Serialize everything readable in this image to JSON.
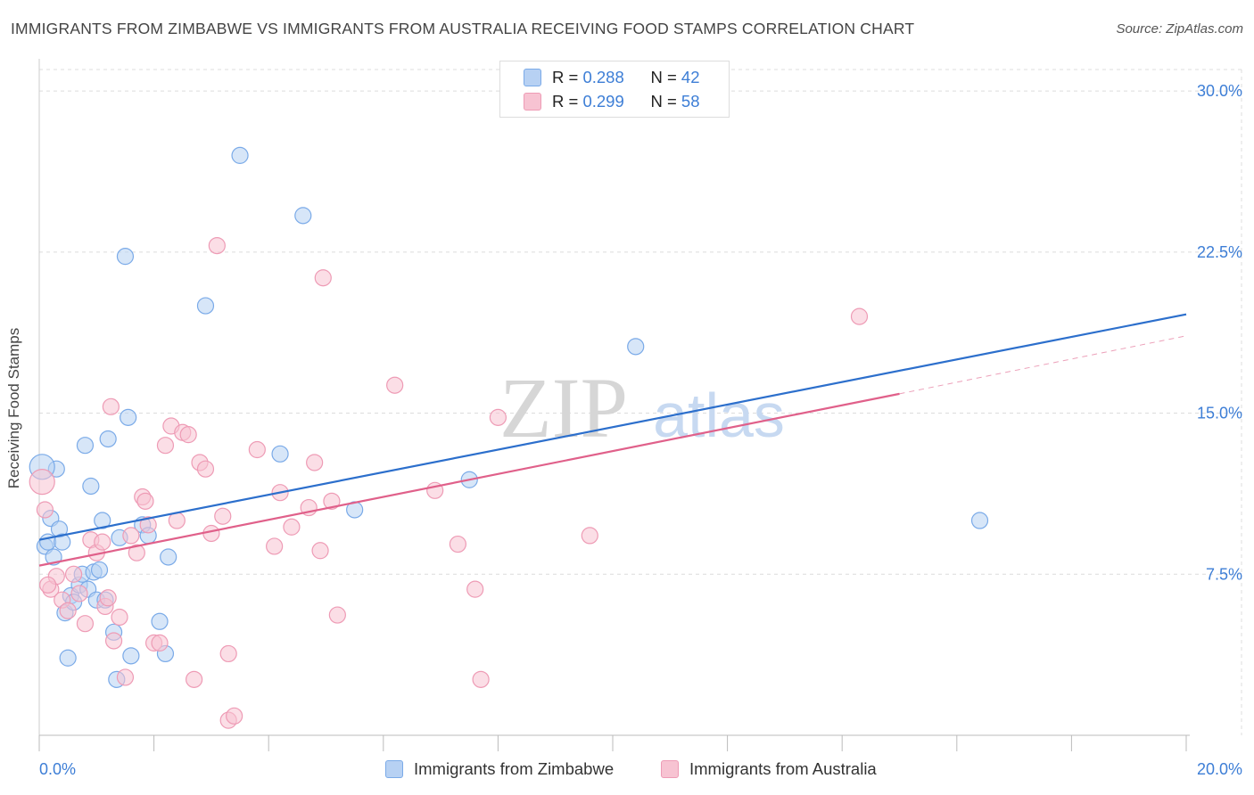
{
  "title": "IMMIGRANTS FROM ZIMBABWE VS IMMIGRANTS FROM AUSTRALIA RECEIVING FOOD STAMPS CORRELATION CHART",
  "source": "Source: ZipAtlas.com",
  "watermark": {
    "zip": "ZIP",
    "atlas": "atlas"
  },
  "legend": {
    "rows": [
      {
        "r_label": "R = ",
        "r_value": "0.288",
        "n_label": "N = ",
        "n_value": "42"
      },
      {
        "r_label": "R = ",
        "r_value": "0.299",
        "n_label": "N = ",
        "n_value": "58"
      }
    ]
  },
  "chart_data": {
    "type": "scatter",
    "title": "IMMIGRANTS FROM ZIMBABWE VS IMMIGRANTS FROM AUSTRALIA RECEIVING FOOD STAMPS CORRELATION CHART",
    "xlabel": "",
    "ylabel": "Receiving Food Stamps",
    "xlim": [
      0,
      20
    ],
    "ylim": [
      0,
      31
    ],
    "x_tick_labels": [
      "0.0%",
      "20.0%"
    ],
    "y_ticks": [
      7.5,
      15.0,
      22.5,
      30.0
    ],
    "y_tick_labels": [
      "7.5%",
      "15.0%",
      "22.5%",
      "30.0%"
    ],
    "grid": true,
    "series": [
      {
        "name": "Immigrants from Zimbabwe",
        "color": "#7aaae8",
        "fill": "#b7d1f3",
        "line_color": "#2c6fcc",
        "trend": {
          "x0": 0.0,
          "y0": 9.1,
          "x1": 20.0,
          "y1": 19.6,
          "dashed_to": null
        },
        "points": [
          [
            0.1,
            8.8
          ],
          [
            0.15,
            9.0
          ],
          [
            0.2,
            10.1
          ],
          [
            0.25,
            8.3
          ],
          [
            0.3,
            12.4
          ],
          [
            0.35,
            9.6
          ],
          [
            0.4,
            9.0
          ],
          [
            0.45,
            5.7
          ],
          [
            0.5,
            3.6
          ],
          [
            0.55,
            6.5
          ],
          [
            0.6,
            6.2
          ],
          [
            0.7,
            7.0
          ],
          [
            0.75,
            7.5
          ],
          [
            0.8,
            13.5
          ],
          [
            0.85,
            6.8
          ],
          [
            0.9,
            11.6
          ],
          [
            0.95,
            7.6
          ],
          [
            1.0,
            6.3
          ],
          [
            1.05,
            7.7
          ],
          [
            1.1,
            10.0
          ],
          [
            1.15,
            6.3
          ],
          [
            1.2,
            13.8
          ],
          [
            1.3,
            4.8
          ],
          [
            1.35,
            2.6
          ],
          [
            1.4,
            9.2
          ],
          [
            1.5,
            22.3
          ],
          [
            1.55,
            14.8
          ],
          [
            1.6,
            3.7
          ],
          [
            1.8,
            9.8
          ],
          [
            1.9,
            9.3
          ],
          [
            2.1,
            5.3
          ],
          [
            2.2,
            3.8
          ],
          [
            2.25,
            8.3
          ],
          [
            2.9,
            20.0
          ],
          [
            3.5,
            27.0
          ],
          [
            4.2,
            13.1
          ],
          [
            4.6,
            24.2
          ],
          [
            5.5,
            10.5
          ],
          [
            7.5,
            11.9
          ],
          [
            10.4,
            18.1
          ],
          [
            16.4,
            10.0
          ],
          [
            0.05,
            12.5
          ]
        ]
      },
      {
        "name": "Immigrants from Australia",
        "color": "#ee9bb5",
        "fill": "#f7c3d2",
        "line_color": "#e0608a",
        "trend": {
          "x0": 0.0,
          "y0": 7.9,
          "x1": 15.0,
          "y1": 15.9,
          "dashed_to": {
            "x": 20.0,
            "y": 18.6
          }
        },
        "points": [
          [
            0.05,
            11.8
          ],
          [
            0.1,
            10.5
          ],
          [
            0.2,
            6.8
          ],
          [
            0.3,
            7.4
          ],
          [
            0.4,
            6.3
          ],
          [
            0.5,
            5.8
          ],
          [
            0.6,
            7.5
          ],
          [
            0.7,
            6.6
          ],
          [
            0.8,
            5.2
          ],
          [
            0.9,
            9.1
          ],
          [
            1.0,
            8.5
          ],
          [
            1.1,
            9.0
          ],
          [
            1.15,
            6.0
          ],
          [
            1.2,
            6.4
          ],
          [
            1.25,
            15.3
          ],
          [
            1.3,
            4.4
          ],
          [
            1.4,
            5.5
          ],
          [
            1.5,
            2.7
          ],
          [
            1.6,
            9.3
          ],
          [
            1.7,
            8.5
          ],
          [
            1.8,
            11.1
          ],
          [
            1.85,
            10.9
          ],
          [
            1.9,
            9.8
          ],
          [
            2.0,
            4.3
          ],
          [
            2.1,
            4.3
          ],
          [
            2.2,
            13.5
          ],
          [
            2.3,
            14.4
          ],
          [
            2.4,
            10.0
          ],
          [
            2.5,
            14.1
          ],
          [
            2.6,
            14.0
          ],
          [
            2.7,
            2.6
          ],
          [
            2.8,
            12.7
          ],
          [
            2.9,
            12.4
          ],
          [
            3.0,
            9.4
          ],
          [
            3.1,
            22.8
          ],
          [
            3.2,
            10.2
          ],
          [
            3.3,
            0.7
          ],
          [
            3.4,
            0.9
          ],
          [
            3.3,
            3.8
          ],
          [
            3.8,
            13.3
          ],
          [
            4.1,
            8.8
          ],
          [
            4.2,
            11.3
          ],
          [
            4.4,
            9.7
          ],
          [
            4.7,
            10.6
          ],
          [
            4.8,
            12.7
          ],
          [
            4.9,
            8.6
          ],
          [
            4.95,
            21.3
          ],
          [
            5.1,
            10.9
          ],
          [
            5.2,
            5.6
          ],
          [
            6.2,
            16.3
          ],
          [
            6.9,
            11.4
          ],
          [
            7.3,
            8.9
          ],
          [
            7.6,
            6.8
          ],
          [
            7.7,
            2.6
          ],
          [
            8.0,
            14.8
          ],
          [
            9.6,
            9.3
          ],
          [
            14.3,
            19.5
          ],
          [
            0.15,
            7.0
          ]
        ]
      }
    ]
  }
}
